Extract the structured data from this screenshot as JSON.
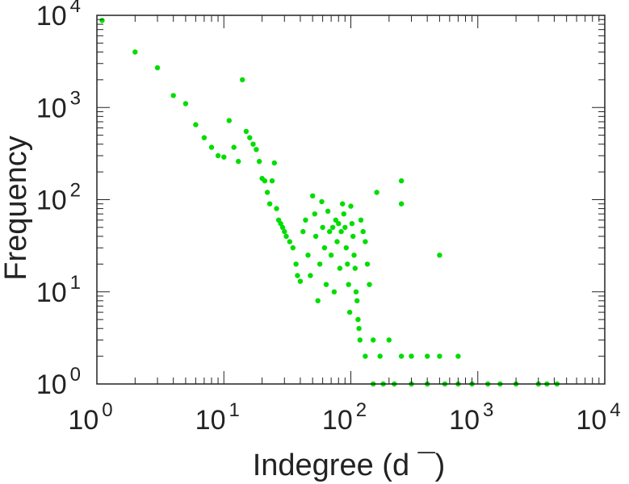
{
  "chart_data": {
    "type": "scatter",
    "title": "",
    "xlabel": "Indegree (d  ¯)",
    "ylabel": "Frequency",
    "xscale": "log",
    "yscale": "log",
    "xlim": [
      1,
      10000
    ],
    "ylim": [
      1,
      10000
    ],
    "grid": false,
    "legend": "none",
    "marker_color": "#00dd00",
    "x_ticks": [
      {
        "value": 1,
        "base": "10",
        "exp": "0"
      },
      {
        "value": 10,
        "base": "10",
        "exp": "1"
      },
      {
        "value": 100,
        "base": "10",
        "exp": "2"
      },
      {
        "value": 1000,
        "base": "10",
        "exp": "3"
      },
      {
        "value": 10000,
        "base": "10",
        "exp": "4"
      }
    ],
    "y_ticks": [
      {
        "value": 1,
        "base": "10",
        "exp": "0"
      },
      {
        "value": 10,
        "base": "10",
        "exp": "1"
      },
      {
        "value": 100,
        "base": "10",
        "exp": "2"
      },
      {
        "value": 1000,
        "base": "10",
        "exp": "3"
      },
      {
        "value": 10000,
        "base": "10",
        "exp": "4"
      }
    ],
    "points": [
      [
        1.1,
        8800
      ],
      [
        2,
        4000
      ],
      [
        3,
        2700
      ],
      [
        4,
        1350
      ],
      [
        5,
        1100
      ],
      [
        6,
        650
      ],
      [
        7,
        470
      ],
      [
        8,
        370
      ],
      [
        9,
        300
      ],
      [
        10,
        290
      ],
      [
        11,
        720
      ],
      [
        12,
        370
      ],
      [
        13,
        260
      ],
      [
        14,
        2000
      ],
      [
        15,
        550
      ],
      [
        16,
        470
      ],
      [
        17,
        400
      ],
      [
        18,
        350
      ],
      [
        19,
        260
      ],
      [
        20,
        170
      ],
      [
        21,
        160
      ],
      [
        22,
        120
      ],
      [
        23,
        90
      ],
      [
        24,
        160
      ],
      [
        25,
        250
      ],
      [
        26,
        80
      ],
      [
        27,
        60
      ],
      [
        28,
        55
      ],
      [
        29,
        50
      ],
      [
        30,
        45
      ],
      [
        31,
        40
      ],
      [
        33,
        35
      ],
      [
        35,
        30
      ],
      [
        37,
        20
      ],
      [
        38,
        15
      ],
      [
        40,
        13
      ],
      [
        42,
        45
      ],
      [
        44,
        60
      ],
      [
        46,
        25
      ],
      [
        48,
        15
      ],
      [
        50,
        110
      ],
      [
        52,
        70
      ],
      [
        53,
        40
      ],
      [
        55,
        8
      ],
      [
        57,
        20
      ],
      [
        59,
        95
      ],
      [
        60,
        50
      ],
      [
        62,
        30
      ],
      [
        64,
        12
      ],
      [
        66,
        75
      ],
      [
        68,
        45
      ],
      [
        70,
        25
      ],
      [
        72,
        50
      ],
      [
        74,
        10
      ],
      [
        76,
        60
      ],
      [
        78,
        35
      ],
      [
        80,
        55
      ],
      [
        82,
        18
      ],
      [
        84,
        45
      ],
      [
        86,
        90
      ],
      [
        88,
        70
      ],
      [
        90,
        50
      ],
      [
        92,
        30
      ],
      [
        94,
        20
      ],
      [
        96,
        12
      ],
      [
        98,
        6
      ],
      [
        100,
        85
      ],
      [
        102,
        55
      ],
      [
        104,
        40
      ],
      [
        106,
        25
      ],
      [
        108,
        18
      ],
      [
        110,
        10
      ],
      [
        112,
        8
      ],
      [
        114,
        5
      ],
      [
        116,
        4
      ],
      [
        118,
        3
      ],
      [
        120,
        60
      ],
      [
        125,
        45
      ],
      [
        130,
        35
      ],
      [
        135,
        20
      ],
      [
        140,
        12
      ],
      [
        150,
        3
      ],
      [
        160,
        120
      ],
      [
        170,
        2
      ],
      [
        200,
        3
      ],
      [
        250,
        160
      ],
      [
        250,
        90
      ],
      [
        500,
        25
      ],
      [
        250,
        2
      ],
      [
        300,
        2
      ],
      [
        400,
        2
      ],
      [
        500,
        2
      ],
      [
        700,
        2
      ],
      [
        130,
        2
      ],
      [
        150,
        1
      ],
      [
        180,
        1
      ],
      [
        220,
        1
      ],
      [
        300,
        1
      ],
      [
        400,
        1
      ],
      [
        550,
        1
      ],
      [
        700,
        1
      ],
      [
        900,
        1
      ],
      [
        1200,
        1
      ],
      [
        1500,
        1
      ],
      [
        2000,
        1
      ],
      [
        3000,
        1
      ],
      [
        3500,
        1
      ],
      [
        4200,
        1
      ]
    ]
  }
}
